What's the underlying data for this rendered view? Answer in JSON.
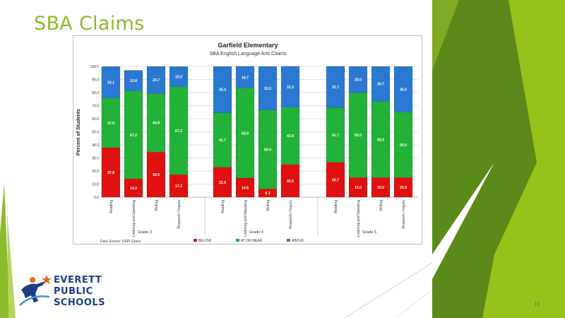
{
  "slide": {
    "title": "SBA Claims",
    "page_number": "11"
  },
  "logo": {
    "line1": "EVERETT",
    "line2": "PUBLIC",
    "line3": "SCHOOLS"
  },
  "colors": {
    "title": "#8cbc2c",
    "green_band_dark": "#5a8a1a",
    "green_band_light": "#96c21c",
    "below": "#e01010",
    "at_or_near": "#22b238",
    "above": "#2a78d0"
  },
  "chart_data": {
    "type": "bar",
    "stacked": true,
    "title": "Garfield Elementary",
    "subtitle": "SBA English Language Arts Claims",
    "ylabel": "Percent of Students",
    "ylim": [
      0,
      100
    ],
    "yticks": [
      "0.0",
      "10.0",
      "20.0",
      "30.0",
      "40.0",
      "50.0",
      "60.0",
      "70.0",
      "80.0",
      "90.0",
      "100.0"
    ],
    "grid": true,
    "legend_position": "bottom",
    "source_note": "Data Source: OSPI Query",
    "categories": [
      "Reading",
      "Listening and Speaking",
      "Writing",
      "Research / Inquiry"
    ],
    "groups": [
      {
        "name": "Grade 3",
        "bars": [
          {
            "category": "Reading",
            "below": 37.9,
            "at_or_near": 37.9,
            "above": 24.1
          },
          {
            "category": "Listening and Speaking",
            "below": 14.0,
            "at_or_near": 67.2,
            "above": 15.8
          },
          {
            "category": "Writing",
            "below": 34.5,
            "at_or_near": 44.8,
            "above": 20.7
          },
          {
            "category": "Research / Inquiry",
            "below": 17.2,
            "at_or_near": 67.2,
            "above": 15.5
          }
        ]
      },
      {
        "name": "Grade 4",
        "bars": [
          {
            "category": "Reading",
            "below": 22.9,
            "at_or_near": 41.7,
            "above": 35.4
          },
          {
            "category": "Listening and Speaking",
            "below": 14.6,
            "at_or_near": 68.8,
            "above": 16.7
          },
          {
            "category": "Writing",
            "below": 6.3,
            "at_or_near": 60.4,
            "above": 33.3
          },
          {
            "category": "Research / Inquiry",
            "below": 25.0,
            "at_or_near": 43.8,
            "above": 31.3
          }
        ]
      },
      {
        "name": "Grade 5",
        "bars": [
          {
            "category": "Reading",
            "below": 26.7,
            "at_or_near": 41.7,
            "above": 31.7
          },
          {
            "category": "Listening and Speaking",
            "below": 15.0,
            "at_or_near": 65.0,
            "above": 20.0
          },
          {
            "category": "Writing",
            "below": 15.0,
            "at_or_near": 58.3,
            "above": 26.7
          },
          {
            "category": "Research / Inquiry",
            "below": 15.0,
            "at_or_near": 50.0,
            "above": 35.0
          }
        ]
      }
    ],
    "series": [
      {
        "key": "below",
        "name": "BELOW",
        "color": "#e01010"
      },
      {
        "key": "at_or_near",
        "name": "AT OR NEAR",
        "color": "#22b238"
      },
      {
        "key": "above",
        "name": "ABOVE",
        "color": "#2a78d0"
      }
    ]
  }
}
